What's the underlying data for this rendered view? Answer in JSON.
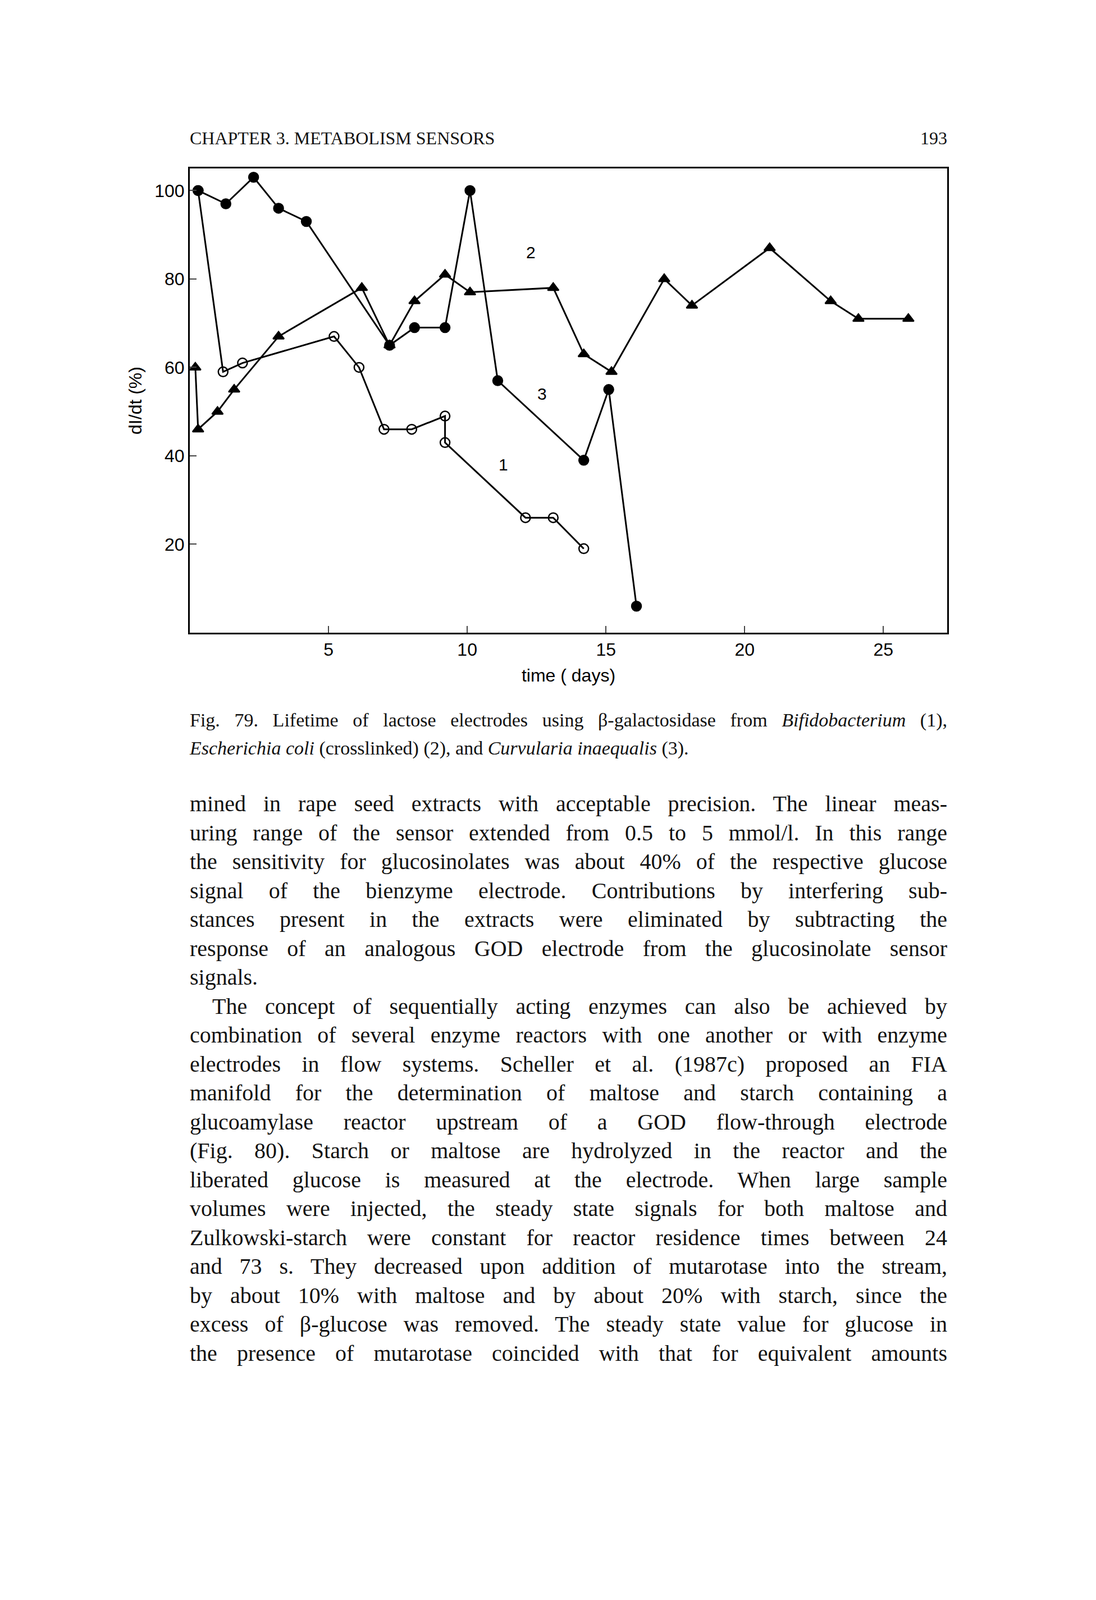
{
  "header": {
    "title": "CHAPTER 3. METABOLISM SENSORS",
    "page": "193"
  },
  "chart_data": {
    "type": "line",
    "xlabel": "time ( days)",
    "ylabel": "dI/dt (%)",
    "xlim": [
      0,
      27.3
    ],
    "ylim": [
      0,
      105
    ],
    "xticks": [
      5,
      10,
      15,
      20,
      25
    ],
    "yticks": [
      20,
      40,
      60,
      80,
      100
    ],
    "grid": false,
    "series": [
      {
        "color": "#000000",
        "marker": "circle-open",
        "x": [
          0.3,
          1.2,
          1.9,
          5.2,
          6.1,
          7.0,
          8.0,
          9.2,
          9.2,
          12.1,
          13.1,
          14.2
        ],
        "values": [
          100,
          59,
          61,
          67,
          60,
          46,
          46,
          49,
          43,
          26,
          26,
          19
        ]
      },
      {
        "color": "#000000",
        "marker": "triangle-up",
        "x": [
          0.2,
          0.3,
          1.0,
          1.6,
          3.2,
          6.2,
          7.2,
          8.1,
          9.2,
          10.1,
          13.1,
          14.2,
          15.2,
          17.1,
          18.1,
          20.9,
          23.1,
          24.1,
          25.9
        ],
        "values": [
          60,
          46,
          50,
          55,
          67,
          78,
          65,
          75,
          81,
          77,
          78,
          63,
          59,
          80,
          74,
          87,
          75,
          71,
          71
        ]
      },
      {
        "color": "#000000",
        "marker": "circle",
        "x": [
          0.3,
          1.3,
          2.3,
          3.2,
          4.2,
          7.2,
          8.1,
          9.2,
          10.1,
          11.1,
          14.2,
          15.1,
          16.1
        ],
        "values": [
          100,
          97,
          103,
          96,
          93,
          65,
          69,
          69,
          100,
          57,
          39,
          55,
          6
        ]
      }
    ],
    "annotations": [
      {
        "text": "1",
        "x": 11.3,
        "y": 38
      },
      {
        "text": "2",
        "x": 12.3,
        "y": 86
      },
      {
        "text": "3",
        "x": 12.7,
        "y": 54
      }
    ]
  },
  "caption": {
    "lines": [
      [
        {
          "text": "Fig. 79. Lifetime of lactose electrodes using β-galactosidase from "
        },
        {
          "text": "Bifidobacterium",
          "italic": true
        },
        {
          "text": " (1),"
        }
      ],
      [
        {
          "text": "Escherichia coli",
          "italic": true
        },
        {
          "text": " (crosslinked) (2), and "
        },
        {
          "text": "Curvularia inaequalis",
          "italic": true
        },
        {
          "text": " (3)."
        }
      ]
    ]
  },
  "body": {
    "paragraphs": [
      [
        "mined in rape seed extracts with acceptable precision. The linear meas-",
        "uring range of the sensor extended from 0.5 to 5 mmol/l. In this range",
        "the sensitivity for glucosinolates was about 40% of the respective glucose",
        "signal of the bienzyme electrode. Contributions by interfering sub-",
        "stances present in the extracts were eliminated by subtracting the",
        "response of an analogous GOD electrode from the glucosinolate sensor",
        "signals."
      ],
      [
        "The concept of sequentially acting enzymes can also be achieved by",
        "combination of several enzyme reactors with one another or with enzyme",
        "electrodes in flow systems. Scheller et al. (1987c) proposed an FIA",
        "manifold for the determination of maltose and starch containing a",
        "glucoamylase reactor upstream of a GOD flow-through electrode",
        "(Fig. 80). Starch or maltose are hydrolyzed in the reactor and the",
        "liberated glucose is measured at the electrode. When large sample",
        "volumes were injected, the steady state signals for both maltose and",
        "Zulkowski-starch were constant for reactor residence times between 24",
        "and 73 s. They decreased upon addition of mutarotase into the stream,",
        "by about 10% with maltose and by about 20% with starch, since the",
        "excess of β-glucose was removed. The steady state value for glucose in",
        "the presence of mutarotase coincided with that for equivalent amounts"
      ]
    ]
  }
}
